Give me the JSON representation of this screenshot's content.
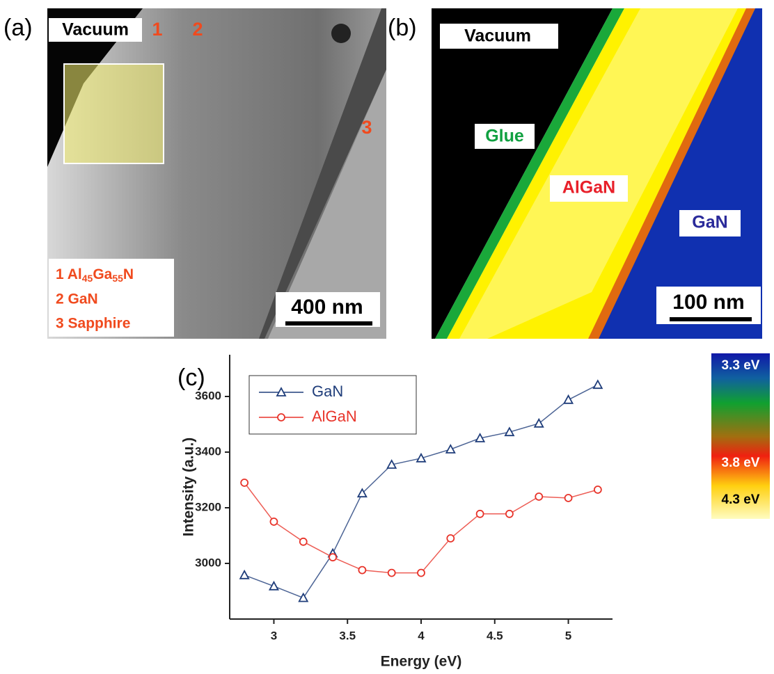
{
  "panel_a": {
    "label": "(a)",
    "vacuum": "Vacuum",
    "markers": [
      "1",
      "2",
      "3"
    ],
    "legend": [
      [
        "1 Al",
        "45",
        "Ga",
        "55",
        "N"
      ],
      [
        "2 GaN"
      ],
      [
        "3 Sapphire"
      ]
    ],
    "scale_bar": "400 nm"
  },
  "panel_b": {
    "label": "(b)",
    "vacuum": "Vacuum",
    "glue": "Glue",
    "algan": "AlGaN",
    "gan": "GaN",
    "scale_bar": "100 nm"
  },
  "colorbar": {
    "labels": [
      "3.3 eV",
      "3.8 eV",
      "4.3 eV"
    ]
  },
  "chart_data": {
    "type": "line",
    "panel_label": "(c)",
    "x_label": "Energy (eV)",
    "y_label": "Intensity (a.u.)",
    "x": [
      2.8,
      3.0,
      3.2,
      3.4,
      3.6,
      3.8,
      4.0,
      4.2,
      4.4,
      4.6,
      4.8,
      5.0,
      5.2
    ],
    "series": [
      {
        "name": "GaN",
        "color": "#1f3d7a",
        "marker": "triangle",
        "values": [
          2958,
          2918,
          2876,
          3036,
          3252,
          3355,
          3378,
          3410,
          3450,
          3472,
          3503,
          3588,
          3642
        ]
      },
      {
        "name": "AlGaN",
        "color": "#e8342a",
        "marker": "circle",
        "values": [
          3290,
          3150,
          3078,
          3022,
          2976,
          2966,
          2966,
          3090,
          3178,
          3178,
          3240,
          3235,
          3265
        ]
      }
    ],
    "xlim": [
      2.7,
      5.3
    ],
    "ylim": [
      2800,
      3750
    ],
    "xticks": [
      3.0,
      3.5,
      4.0,
      4.5,
      5.0
    ],
    "yticks": [
      3000,
      3200,
      3400,
      3600
    ],
    "legend": "upper left"
  }
}
